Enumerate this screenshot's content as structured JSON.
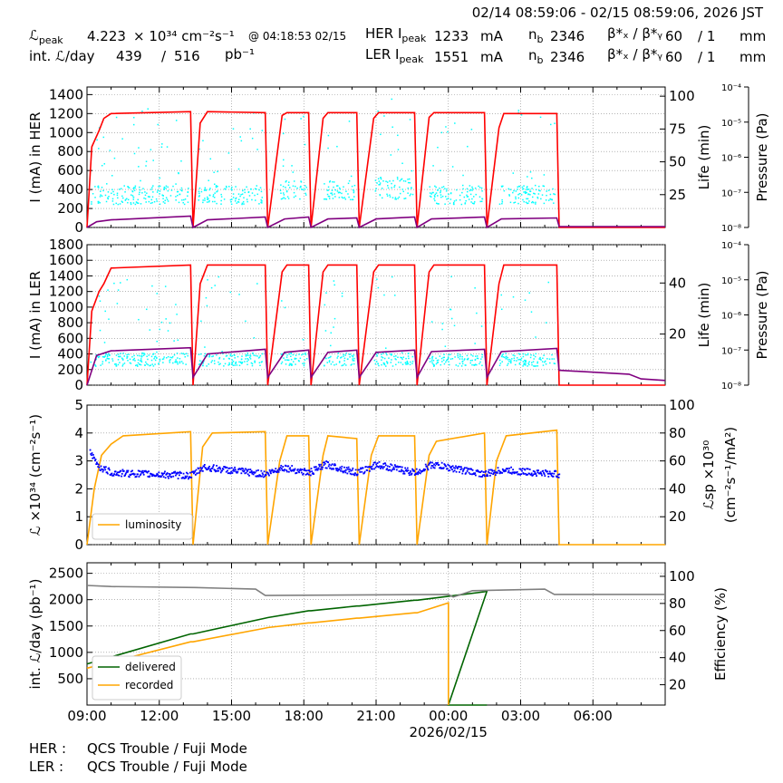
{
  "header": {
    "time_range": "02/14 08:59:06 - 02/15 08:59:06, 2026 JST",
    "lpeak_label": "ℒ",
    "lpeak_sub": "peak",
    "lpeak_value": "4.223",
    "lpeak_units": "× 10³⁴ cm⁻²s⁻¹",
    "lpeak_time": "@ 04:18:53 02/15",
    "intl_label": "int. ℒ/day",
    "intl_delivered": "439",
    "intl_sep": "/",
    "intl_recorded": "516",
    "intl_units": "pb⁻¹",
    "her_label": "HER I",
    "her_sub": "peak",
    "her_value": "1233",
    "her_units": "mA",
    "ler_label": "LER I",
    "ler_sub": "peak",
    "ler_value": "1551",
    "ler_units": "mA",
    "nb_label": "n",
    "nb_sub": "b",
    "her_nb": "2346",
    "ler_nb": "2346",
    "beta_label": "β*ₓ / β*ᵧ",
    "her_beta_x": "60",
    "her_beta_y": "/ 1",
    "ler_beta_x": "60",
    "ler_beta_y": "/ 1",
    "beta_units": "mm"
  },
  "footer": {
    "her_label": "HER :",
    "her_status": "QCS Trouble / Fuji Mode",
    "ler_label": "LER :",
    "ler_status": "QCS Trouble / Fuji Mode"
  },
  "chart_data": [
    {
      "type": "line",
      "ylabel": "I (mA) in HER",
      "y2label": "Life (min)",
      "y3label": "Pressure (Pa)",
      "ylim": [
        0,
        1480
      ],
      "yticks": [
        0,
        200,
        400,
        600,
        800,
        1000,
        1200,
        1400
      ],
      "y2ticks": [
        25,
        50,
        75,
        100
      ],
      "y3ticks": [
        "10⁻⁸",
        "10⁻⁷",
        "10⁻⁶",
        "10⁻⁵",
        "10⁻⁴"
      ],
      "grid": true,
      "series": [
        {
          "color": "#ff0000",
          "points": [
            [
              0,
              0
            ],
            [
              0.2,
              850
            ],
            [
              0.5,
              1020
            ],
            [
              0.7,
              1150
            ],
            [
              1,
              1200
            ],
            [
              4.3,
              1220
            ],
            [
              4.4,
              0
            ],
            [
              4.7,
              1100
            ],
            [
              5,
              1220
            ],
            [
              7.4,
              1210
            ],
            [
              7.5,
              0
            ],
            [
              8.1,
              1180
            ],
            [
              8.3,
              1210
            ],
            [
              9.2,
              1210
            ],
            [
              9.3,
              0
            ],
            [
              9.8,
              1150
            ],
            [
              10,
              1210
            ],
            [
              11.2,
              1210
            ],
            [
              11.3,
              0
            ],
            [
              11.9,
              1150
            ],
            [
              12.1,
              1210
            ],
            [
              13.6,
              1210
            ],
            [
              13.7,
              0
            ],
            [
              14.2,
              1160
            ],
            [
              14.4,
              1210
            ],
            [
              16.5,
              1210
            ],
            [
              16.6,
              0
            ],
            [
              17.1,
              1050
            ],
            [
              17.3,
              1200
            ],
            [
              19.5,
              1200
            ],
            [
              19.6,
              0
            ],
            [
              24,
              0
            ]
          ]
        },
        {
          "color": "#800080",
          "points": [
            [
              0,
              0
            ],
            [
              0.4,
              60
            ],
            [
              1,
              80
            ],
            [
              4.3,
              120
            ],
            [
              4.4,
              0
            ],
            [
              5,
              80
            ],
            [
              7.4,
              110
            ],
            [
              7.5,
              0
            ],
            [
              8.2,
              90
            ],
            [
              9.2,
              110
            ],
            [
              9.3,
              0
            ],
            [
              10,
              90
            ],
            [
              11.2,
              100
            ],
            [
              11.3,
              0
            ],
            [
              12,
              90
            ],
            [
              13.6,
              110
            ],
            [
              13.7,
              0
            ],
            [
              14.3,
              90
            ],
            [
              16.5,
              110
            ],
            [
              16.6,
              0
            ],
            [
              17.2,
              90
            ],
            [
              19.5,
              100
            ],
            [
              19.6,
              10
            ],
            [
              24,
              10
            ]
          ]
        }
      ],
      "scatter_color": "#00ffff",
      "scatter_ranges": [
        [
          0.1,
          4.2,
          250,
          450
        ],
        [
          4.6,
          7.3,
          250,
          450
        ],
        [
          8,
          9.1,
          300,
          500
        ],
        [
          9.8,
          11.1,
          300,
          500
        ],
        [
          11.9,
          13.5,
          300,
          550
        ],
        [
          14.2,
          16.4,
          250,
          450
        ],
        [
          17.1,
          19.4,
          250,
          450
        ]
      ]
    },
    {
      "type": "line",
      "ylabel": "I (mA) in LER",
      "y2label": "Life (min)",
      "y3label": "Pressure (Pa)",
      "ylim": [
        0,
        1800
      ],
      "yticks": [
        0,
        200,
        400,
        600,
        800,
        1000,
        1200,
        1400,
        1600,
        1800
      ],
      "y2ticks": [
        20,
        40
      ],
      "y3ticks": [
        "10⁻⁸",
        "10⁻⁷",
        "10⁻⁶",
        "10⁻⁵",
        "10⁻⁴"
      ],
      "grid": true,
      "series": [
        {
          "color": "#ff0000",
          "points": [
            [
              0,
              0
            ],
            [
              0.2,
              950
            ],
            [
              0.5,
              1200
            ],
            [
              0.7,
              1300
            ],
            [
              1,
              1500
            ],
            [
              4.3,
              1540
            ],
            [
              4.4,
              0
            ],
            [
              4.7,
              1300
            ],
            [
              5,
              1540
            ],
            [
              7.4,
              1540
            ],
            [
              7.5,
              0
            ],
            [
              8.1,
              1450
            ],
            [
              8.3,
              1540
            ],
            [
              9.2,
              1540
            ],
            [
              9.3,
              0
            ],
            [
              9.8,
              1450
            ],
            [
              10,
              1540
            ],
            [
              11.2,
              1540
            ],
            [
              11.3,
              0
            ],
            [
              11.9,
              1450
            ],
            [
              12.1,
              1540
            ],
            [
              13.6,
              1540
            ],
            [
              13.7,
              0
            ],
            [
              14.2,
              1450
            ],
            [
              14.4,
              1540
            ],
            [
              16.5,
              1540
            ],
            [
              16.6,
              0
            ],
            [
              17.1,
              1300
            ],
            [
              17.3,
              1540
            ],
            [
              19.5,
              1540
            ],
            [
              19.6,
              0
            ],
            [
              24,
              0
            ]
          ]
        },
        {
          "color": "#800080",
          "points": [
            [
              0,
              0
            ],
            [
              0.4,
              380
            ],
            [
              1,
              440
            ],
            [
              4.3,
              480
            ],
            [
              4.4,
              100
            ],
            [
              5,
              400
            ],
            [
              7.4,
              460
            ],
            [
              7.5,
              100
            ],
            [
              8.2,
              420
            ],
            [
              9.2,
              450
            ],
            [
              9.3,
              100
            ],
            [
              10,
              420
            ],
            [
              11.2,
              450
            ],
            [
              11.3,
              100
            ],
            [
              12,
              420
            ],
            [
              13.6,
              450
            ],
            [
              13.7,
              100
            ],
            [
              14.3,
              430
            ],
            [
              16.5,
              460
            ],
            [
              16.6,
              100
            ],
            [
              17.2,
              430
            ],
            [
              19.5,
              470
            ],
            [
              19.6,
              190
            ],
            [
              22.5,
              140
            ],
            [
              23,
              80
            ],
            [
              24,
              60
            ]
          ]
        }
      ],
      "scatter_color": "#00ffff",
      "scatter_ranges": [
        [
          0.1,
          4.2,
          250,
          420
        ],
        [
          4.6,
          7.3,
          250,
          420
        ],
        [
          8,
          9.1,
          250,
          420
        ],
        [
          9.8,
          11.1,
          250,
          420
        ],
        [
          11.9,
          13.5,
          250,
          420
        ],
        [
          14.2,
          16.4,
          250,
          420
        ],
        [
          17.1,
          19.4,
          250,
          420
        ]
      ]
    },
    {
      "type": "line",
      "ylabel": "ℒ ×10³⁴ (cm⁻²s⁻¹)",
      "y2label": "ℒsp ×10³⁰ (cm⁻²s⁻¹/mA²)",
      "ylim": [
        0,
        5
      ],
      "yticks": [
        0,
        1,
        2,
        3,
        4,
        5
      ],
      "y2ticks": [
        20,
        40,
        60,
        80,
        100
      ],
      "grid": true,
      "legend": {
        "label": "luminosity",
        "position": "lower-left"
      },
      "series": [
        {
          "name": "luminosity",
          "color": "#ffa500",
          "points": [
            [
              0,
              0
            ],
            [
              0.3,
              2
            ],
            [
              0.6,
              3.2
            ],
            [
              1,
              3.6
            ],
            [
              1.5,
              3.9
            ],
            [
              4.3,
              4.05
            ],
            [
              4.4,
              0
            ],
            [
              4.8,
              3.5
            ],
            [
              5.2,
              4.0
            ],
            [
              7.4,
              4.05
            ],
            [
              7.5,
              0
            ],
            [
              8,
              3.0
            ],
            [
              8.3,
              3.9
            ],
            [
              9.2,
              3.9
            ],
            [
              9.3,
              0
            ],
            [
              9.8,
              3.2
            ],
            [
              10,
              3.9
            ],
            [
              11.2,
              3.8
            ],
            [
              11.3,
              0
            ],
            [
              11.8,
              3.2
            ],
            [
              12.1,
              3.9
            ],
            [
              13.6,
              3.9
            ],
            [
              13.7,
              0
            ],
            [
              14.2,
              3.2
            ],
            [
              14.5,
              3.7
            ],
            [
              16.5,
              4.0
            ],
            [
              16.6,
              0
            ],
            [
              17,
              3.0
            ],
            [
              17.4,
              3.9
            ],
            [
              19.5,
              4.1
            ],
            [
              19.6,
              0
            ],
            [
              24,
              0
            ]
          ]
        },
        {
          "color": "#0000ff",
          "points": [
            [
              0.1,
              3.3
            ],
            [
              0.5,
              2.8
            ],
            [
              1,
              2.6
            ],
            [
              4.3,
              2.5
            ],
            [
              4.8,
              2.8
            ],
            [
              7.4,
              2.55
            ],
            [
              8.1,
              2.8
            ],
            [
              9.2,
              2.6
            ],
            [
              9.9,
              2.9
            ],
            [
              11.2,
              2.6
            ],
            [
              12,
              2.9
            ],
            [
              13.6,
              2.6
            ],
            [
              14.3,
              2.9
            ],
            [
              16.5,
              2.55
            ],
            [
              17.2,
              2.7
            ],
            [
              19.5,
              2.55
            ]
          ]
        }
      ]
    },
    {
      "type": "line",
      "ylabel": "int. ℒ/day (pb⁻¹)",
      "y2label": "Efficiency (%)",
      "xlabel": "2026/02/15",
      "ylim": [
        0,
        2700
      ],
      "yticks": [
        500,
        1000,
        1500,
        2000,
        2500
      ],
      "y2ticks": [
        20,
        40,
        60,
        80,
        100
      ],
      "xticks": [
        "09:00",
        "12:00",
        "15:00",
        "18:00",
        "21:00",
        "00:00",
        "03:00",
        "06:00"
      ],
      "grid": true,
      "legend": {
        "position": "lower-left"
      },
      "series": [
        {
          "name": "delivered",
          "color": "#006400",
          "points": [
            [
              0,
              780
            ],
            [
              4.3,
              1350
            ],
            [
              4.4,
              1350
            ],
            [
              7.4,
              1650
            ],
            [
              7.5,
              1660
            ],
            [
              9.2,
              1790
            ],
            [
              9.3,
              1790
            ],
            [
              11.2,
              1880
            ],
            [
              11.3,
              1880
            ],
            [
              13.6,
              1990
            ],
            [
              13.7,
              1990
            ],
            [
              16.5,
              2150
            ],
            [
              16.6,
              2160
            ],
            [
              15,
              0
            ],
            [
              16.6,
              0
            ],
            [
              15,
              0
            ]
          ]
        },
        {
          "name": "recorded",
          "color": "#ffa500",
          "points": [
            [
              0,
              700
            ],
            [
              4.3,
              1200
            ],
            [
              4.4,
              1200
            ],
            [
              7.4,
              1460
            ],
            [
              7.5,
              1470
            ],
            [
              9.2,
              1560
            ],
            [
              9.3,
              1560
            ],
            [
              11.2,
              1650
            ],
            [
              11.3,
              1650
            ],
            [
              13.6,
              1750
            ],
            [
              13.7,
              1750
            ],
            [
              15,
              1940
            ],
            [
              15,
              0
            ]
          ]
        },
        {
          "color": "#808080",
          "points": [
            [
              0,
              2270
            ],
            [
              1,
              2250
            ],
            [
              4.5,
              2230
            ],
            [
              7,
              2200
            ],
            [
              7.4,
              2080
            ],
            [
              15,
              2100
            ],
            [
              15.2,
              2050
            ],
            [
              16,
              2170
            ],
            [
              19,
              2200
            ],
            [
              19.4,
              2100
            ],
            [
              24,
              2100
            ]
          ]
        }
      ]
    }
  ]
}
